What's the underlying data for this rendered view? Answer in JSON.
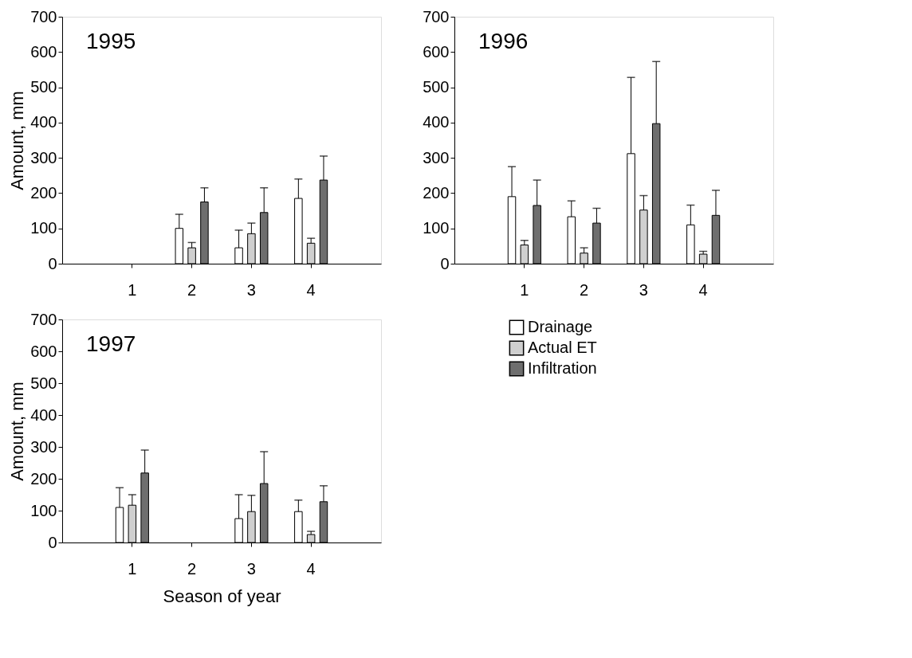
{
  "chart_data": [
    {
      "type": "bar",
      "title": "1995",
      "ylabel": "Amount, mm",
      "categories": [
        "1",
        "2",
        "3",
        "4"
      ],
      "ylim": [
        0,
        700
      ],
      "yticks": [
        0,
        100,
        200,
        300,
        400,
        500,
        600,
        700
      ],
      "grid": false,
      "legend": false,
      "series": [
        {
          "color": "#ffffff",
          "values": [
            null,
            100,
            45,
            185
          ],
          "errors": [
            null,
            [
              100,
              140
            ],
            [
              45,
              95
            ],
            [
              185,
              240
            ]
          ]
        },
        {
          "color": "#cfcfcf",
          "values": [
            null,
            45,
            85,
            58
          ],
          "errors": [
            null,
            [
              45,
              60
            ],
            [
              85,
              115
            ],
            [
              58,
              72
            ]
          ]
        },
        {
          "color": "#6e6e6e",
          "values": [
            null,
            175,
            145,
            237
          ],
          "errors": [
            null,
            [
              175,
              215
            ],
            [
              145,
              215
            ],
            [
              237,
              305
            ]
          ]
        }
      ]
    },
    {
      "type": "bar",
      "title": "1996",
      "categories": [
        "1",
        "2",
        "3",
        "4"
      ],
      "ylim": [
        0,
        700
      ],
      "yticks": [
        0,
        100,
        200,
        300,
        400,
        500,
        600,
        700
      ],
      "grid": false,
      "legend": false,
      "series": [
        {
          "color": "#ffffff",
          "values": [
            190,
            133,
            312,
            110
          ],
          "errors": [
            [
              190,
              275
            ],
            [
              133,
              178
            ],
            [
              312,
              528
            ],
            [
              110,
              166
            ]
          ]
        },
        {
          "color": "#cfcfcf",
          "values": [
            53,
            30,
            152,
            27
          ],
          "errors": [
            [
              53,
              66
            ],
            [
              30,
              45
            ],
            [
              152,
              193
            ],
            [
              27,
              35
            ]
          ]
        },
        {
          "color": "#6e6e6e",
          "values": [
            165,
            115,
            397,
            137
          ],
          "errors": [
            [
              165,
              237
            ],
            [
              115,
              157
            ],
            [
              397,
              573
            ],
            [
              137,
              208
            ]
          ]
        }
      ]
    },
    {
      "type": "bar",
      "title": "1997",
      "xlabel": "Season of year",
      "ylabel": "Amount, mm",
      "categories": [
        "1",
        "2",
        "3",
        "4"
      ],
      "ylim": [
        0,
        700
      ],
      "yticks": [
        0,
        100,
        200,
        300,
        400,
        500,
        600,
        700
      ],
      "grid": false,
      "legend": "right",
      "series": [
        {
          "name": "Drainage",
          "color": "#ffffff",
          "values": [
            110,
            null,
            75,
            97
          ],
          "errors": [
            [
              110,
              172
            ],
            null,
            [
              75,
              150
            ],
            [
              97,
              133
            ]
          ]
        },
        {
          "name": "Actual ET",
          "color": "#cfcfcf",
          "values": [
            117,
            null,
            97,
            25
          ],
          "errors": [
            [
              117,
              150
            ],
            null,
            [
              97,
              148
            ],
            [
              25,
              35
            ]
          ]
        },
        {
          "name": "Infiltration",
          "color": "#6e6e6e",
          "values": [
            218,
            null,
            185,
            128
          ],
          "errors": [
            [
              218,
              290
            ],
            null,
            [
              185,
              285
            ],
            [
              128,
              178
            ]
          ]
        }
      ]
    }
  ]
}
